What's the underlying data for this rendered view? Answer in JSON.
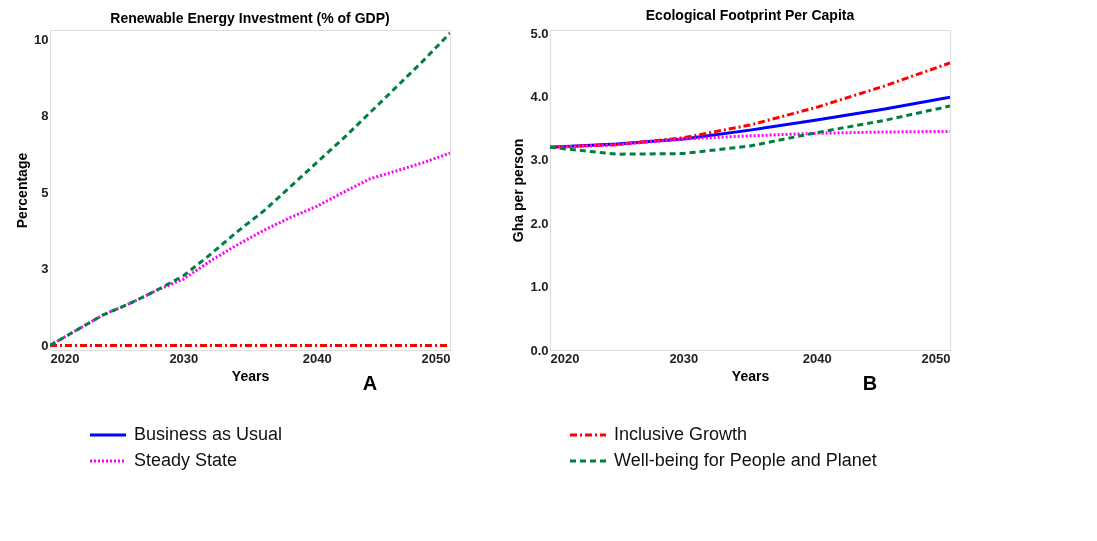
{
  "chart_data": [
    {
      "type": "line",
      "title": "Renewable Energy Investment (% of GDP)",
      "xlabel": "Years",
      "ylabel": "Percentage",
      "annotations": [
        "A"
      ],
      "x": [
        2020,
        2022,
        2024,
        2026,
        2028,
        2030,
        2032,
        2034,
        2036,
        2038,
        2040,
        2042,
        2044,
        2046,
        2048,
        2050
      ],
      "xlim": [
        2020,
        2050
      ],
      "xticks": [
        2020,
        2030,
        2040,
        2050
      ],
      "ylim": [
        -0.15,
        10.3
      ],
      "yticks": [
        0,
        {
          "value": 2.5,
          "label": "3"
        },
        5,
        {
          "value": 7.5,
          "label": "8"
        },
        10
      ],
      "grid": false,
      "legend": "bottom",
      "series": [
        {
          "name": "Inclusive Growth",
          "color": "#ff0000",
          "line_style": "dashdot",
          "values": [
            0,
            0,
            0,
            0,
            0,
            0,
            0,
            0,
            0,
            0,
            0,
            0,
            0,
            0,
            0,
            0
          ]
        },
        {
          "name": "Steady State",
          "color": "#ff00ff",
          "line_style": "dotted",
          "values": [
            0,
            0.5,
            1.0,
            1.37,
            1.8,
            2.16,
            2.75,
            3.27,
            3.75,
            4.17,
            4.54,
            5.0,
            5.44,
            5.7,
            5.97,
            6.28
          ]
        },
        {
          "name": "Well-being for People and Planet",
          "color": "#008040",
          "line_style": "dashed",
          "values": [
            0,
            0.5,
            1.0,
            1.37,
            1.8,
            2.27,
            2.96,
            3.7,
            4.38,
            5.17,
            5.97,
            6.76,
            7.6,
            8.45,
            9.3,
            10.2
          ]
        }
      ]
    },
    {
      "type": "line",
      "title": "Ecological Footprint Per Capita",
      "xlabel": "Years",
      "ylabel": "Gha per person",
      "annotations": [
        "B"
      ],
      "x": [
        2020,
        2025,
        2030,
        2035,
        2040,
        2045,
        2050
      ],
      "xlim": [
        2020,
        2050
      ],
      "xticks": [
        2020,
        2030,
        2040,
        2050
      ],
      "ylim": [
        0,
        5.05
      ],
      "yticks": [
        {
          "value": 0,
          "label": "0.0"
        },
        {
          "value": 1,
          "label": "1.0"
        },
        {
          "value": 2,
          "label": "2.0"
        },
        {
          "value": 3,
          "label": "3.0"
        },
        {
          "value": 4,
          "label": "4.0"
        },
        {
          "value": 5,
          "label": "5.0"
        }
      ],
      "grid": false,
      "legend": "bottom",
      "series": [
        {
          "name": "Business as Usual",
          "color": "#0000ff",
          "line_style": "solid",
          "values": [
            3.2,
            3.25,
            3.33,
            3.47,
            3.63,
            3.8,
            3.99
          ]
        },
        {
          "name": "Inclusive Growth",
          "color": "#ff0000",
          "line_style": "dashdot",
          "values": [
            3.2,
            3.24,
            3.35,
            3.55,
            3.83,
            4.16,
            4.53
          ]
        },
        {
          "name": "Steady State",
          "color": "#ff00ff",
          "line_style": "dotted",
          "values": [
            3.2,
            3.24,
            3.33,
            3.38,
            3.42,
            3.44,
            3.45
          ]
        },
        {
          "name": "Well-being for People and Planet",
          "color": "#008040",
          "line_style": "dashed",
          "values": [
            3.2,
            3.09,
            3.1,
            3.22,
            3.43,
            3.62,
            3.85
          ]
        }
      ]
    }
  ]
}
